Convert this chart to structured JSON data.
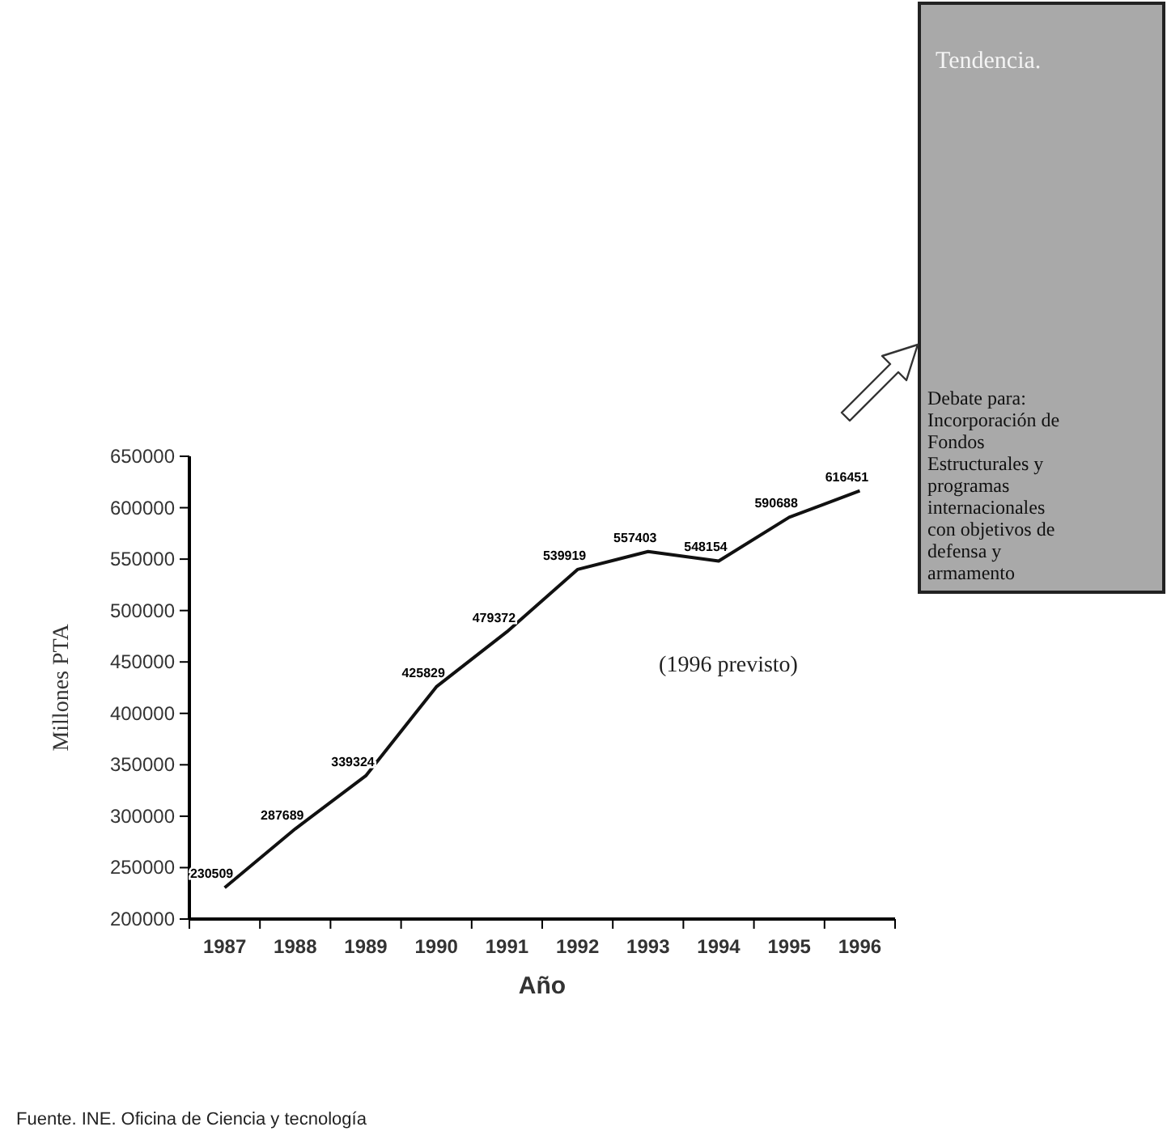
{
  "chart_data": {
    "type": "line",
    "xlabel": "Año",
    "ylabel": "Millones PTA",
    "categories": [
      "1987",
      "1988",
      "1989",
      "1990",
      "1991",
      "1992",
      "1993",
      "1994",
      "1995",
      "1996"
    ],
    "series": [
      {
        "color": "#111111",
        "values": [
          230509,
          287689,
          339324,
          425829,
          479372,
          539919,
          557403,
          548154,
          590688,
          616451
        ]
      }
    ],
    "ylim": [
      200000,
      650000
    ],
    "yticks": [
      200000,
      250000,
      300000,
      350000,
      400000,
      450000,
      500000,
      550000,
      600000,
      650000
    ],
    "data_labels": true,
    "grid": false,
    "marker": "none",
    "line_style": "solid",
    "annotations": [
      "(1996 previsto)",
      "Tendencia.",
      "Debate para: Incorporación de Fondos Estructurales y programas internacionales con objetivos de defensa y armamento",
      "Fuente. INE. Oficina de Ciencia y tecnología"
    ]
  }
}
